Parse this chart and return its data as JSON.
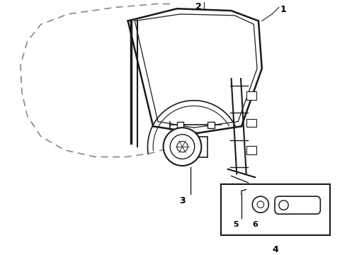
{
  "bg_color": "#ffffff",
  "line_color": "#1a1a1a",
  "dashed_color": "#888888",
  "label_color": "#000000",
  "fig_width": 4.9,
  "fig_height": 3.6,
  "dpi": 100
}
